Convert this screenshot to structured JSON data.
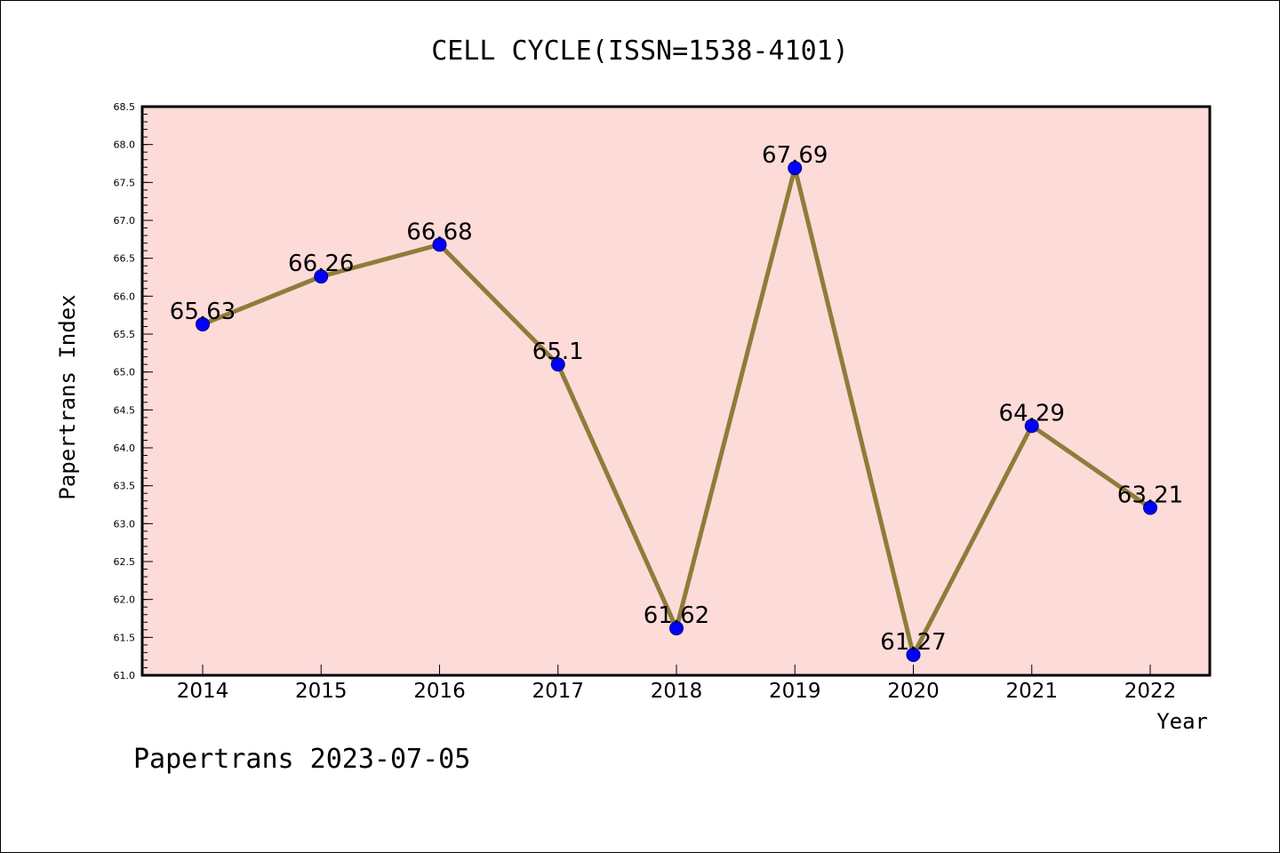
{
  "chart_data": {
    "type": "line",
    "title": "CELL CYCLE(ISSN=1538-4101)",
    "xlabel": "Year",
    "ylabel": "Papertrans Index",
    "categories": [
      "2014",
      "2015",
      "2016",
      "2017",
      "2018",
      "2019",
      "2020",
      "2021",
      "2022"
    ],
    "series": [
      {
        "values": [
          65.63,
          66.26,
          66.68,
          65.1,
          61.62,
          67.69,
          61.27,
          64.29,
          63.21
        ]
      }
    ],
    "data_labels": [
      "65.63",
      "66.26",
      "66.68",
      "65.1",
      "61.62",
      "67.69",
      "61.27",
      "64.29",
      "63.21"
    ],
    "ylim": [
      61.0,
      68.5
    ],
    "yticks": [
      "61.0",
      "61.5",
      "62.0",
      "62.5",
      "63.0",
      "63.5",
      "64.0",
      "64.5",
      "65.0",
      "65.5",
      "66.0",
      "66.5",
      "67.0",
      "67.5",
      "68.0",
      "68.5"
    ],
    "grid": false,
    "colors": {
      "plot_background": "#fddbd9",
      "line": "#8f7c3a",
      "marker": "#0000ff"
    }
  },
  "footer": "Papertrans 2023-07-05"
}
